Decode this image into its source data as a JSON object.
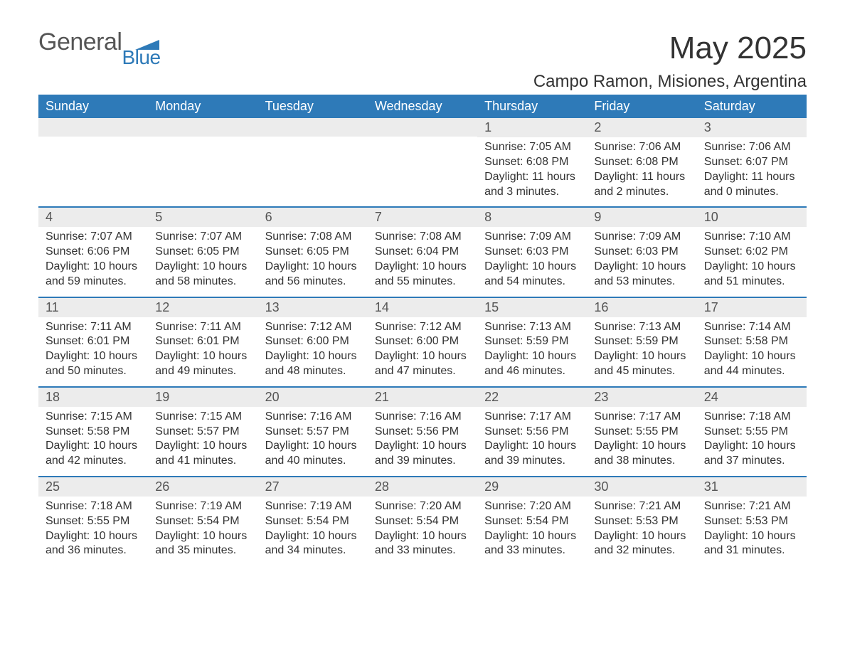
{
  "logo": {
    "text1": "General",
    "text2": "Blue"
  },
  "title": "May 2025",
  "location": "Campo Ramon, Misiones, Argentina",
  "colors": {
    "primary": "#2e7ab8",
    "header_bg": "#ececec",
    "text": "#333333",
    "background": "#ffffff"
  },
  "columns": [
    "Sunday",
    "Monday",
    "Tuesday",
    "Wednesday",
    "Thursday",
    "Friday",
    "Saturday"
  ],
  "weeks": [
    [
      {
        "blank": true
      },
      {
        "blank": true
      },
      {
        "blank": true
      },
      {
        "blank": true
      },
      {
        "day": "1",
        "sunrise": "7:05 AM",
        "sunset": "6:08 PM",
        "daylight": "11 hours and 3 minutes."
      },
      {
        "day": "2",
        "sunrise": "7:06 AM",
        "sunset": "6:08 PM",
        "daylight": "11 hours and 2 minutes."
      },
      {
        "day": "3",
        "sunrise": "7:06 AM",
        "sunset": "6:07 PM",
        "daylight": "11 hours and 0 minutes."
      }
    ],
    [
      {
        "day": "4",
        "sunrise": "7:07 AM",
        "sunset": "6:06 PM",
        "daylight": "10 hours and 59 minutes."
      },
      {
        "day": "5",
        "sunrise": "7:07 AM",
        "sunset": "6:05 PM",
        "daylight": "10 hours and 58 minutes."
      },
      {
        "day": "6",
        "sunrise": "7:08 AM",
        "sunset": "6:05 PM",
        "daylight": "10 hours and 56 minutes."
      },
      {
        "day": "7",
        "sunrise": "7:08 AM",
        "sunset": "6:04 PM",
        "daylight": "10 hours and 55 minutes."
      },
      {
        "day": "8",
        "sunrise": "7:09 AM",
        "sunset": "6:03 PM",
        "daylight": "10 hours and 54 minutes."
      },
      {
        "day": "9",
        "sunrise": "7:09 AM",
        "sunset": "6:03 PM",
        "daylight": "10 hours and 53 minutes."
      },
      {
        "day": "10",
        "sunrise": "7:10 AM",
        "sunset": "6:02 PM",
        "daylight": "10 hours and 51 minutes."
      }
    ],
    [
      {
        "day": "11",
        "sunrise": "7:11 AM",
        "sunset": "6:01 PM",
        "daylight": "10 hours and 50 minutes."
      },
      {
        "day": "12",
        "sunrise": "7:11 AM",
        "sunset": "6:01 PM",
        "daylight": "10 hours and 49 minutes."
      },
      {
        "day": "13",
        "sunrise": "7:12 AM",
        "sunset": "6:00 PM",
        "daylight": "10 hours and 48 minutes."
      },
      {
        "day": "14",
        "sunrise": "7:12 AM",
        "sunset": "6:00 PM",
        "daylight": "10 hours and 47 minutes."
      },
      {
        "day": "15",
        "sunrise": "7:13 AM",
        "sunset": "5:59 PM",
        "daylight": "10 hours and 46 minutes."
      },
      {
        "day": "16",
        "sunrise": "7:13 AM",
        "sunset": "5:59 PM",
        "daylight": "10 hours and 45 minutes."
      },
      {
        "day": "17",
        "sunrise": "7:14 AM",
        "sunset": "5:58 PM",
        "daylight": "10 hours and 44 minutes."
      }
    ],
    [
      {
        "day": "18",
        "sunrise": "7:15 AM",
        "sunset": "5:58 PM",
        "daylight": "10 hours and 42 minutes."
      },
      {
        "day": "19",
        "sunrise": "7:15 AM",
        "sunset": "5:57 PM",
        "daylight": "10 hours and 41 minutes."
      },
      {
        "day": "20",
        "sunrise": "7:16 AM",
        "sunset": "5:57 PM",
        "daylight": "10 hours and 40 minutes."
      },
      {
        "day": "21",
        "sunrise": "7:16 AM",
        "sunset": "5:56 PM",
        "daylight": "10 hours and 39 minutes."
      },
      {
        "day": "22",
        "sunrise": "7:17 AM",
        "sunset": "5:56 PM",
        "daylight": "10 hours and 39 minutes."
      },
      {
        "day": "23",
        "sunrise": "7:17 AM",
        "sunset": "5:55 PM",
        "daylight": "10 hours and 38 minutes."
      },
      {
        "day": "24",
        "sunrise": "7:18 AM",
        "sunset": "5:55 PM",
        "daylight": "10 hours and 37 minutes."
      }
    ],
    [
      {
        "day": "25",
        "sunrise": "7:18 AM",
        "sunset": "5:55 PM",
        "daylight": "10 hours and 36 minutes."
      },
      {
        "day": "26",
        "sunrise": "7:19 AM",
        "sunset": "5:54 PM",
        "daylight": "10 hours and 35 minutes."
      },
      {
        "day": "27",
        "sunrise": "7:19 AM",
        "sunset": "5:54 PM",
        "daylight": "10 hours and 34 minutes."
      },
      {
        "day": "28",
        "sunrise": "7:20 AM",
        "sunset": "5:54 PM",
        "daylight": "10 hours and 33 minutes."
      },
      {
        "day": "29",
        "sunrise": "7:20 AM",
        "sunset": "5:54 PM",
        "daylight": "10 hours and 33 minutes."
      },
      {
        "day": "30",
        "sunrise": "7:21 AM",
        "sunset": "5:53 PM",
        "daylight": "10 hours and 32 minutes."
      },
      {
        "day": "31",
        "sunrise": "7:21 AM",
        "sunset": "5:53 PM",
        "daylight": "10 hours and 31 minutes."
      }
    ]
  ],
  "labels": {
    "sunrise": "Sunrise:",
    "sunset": "Sunset:",
    "daylight": "Daylight:"
  }
}
